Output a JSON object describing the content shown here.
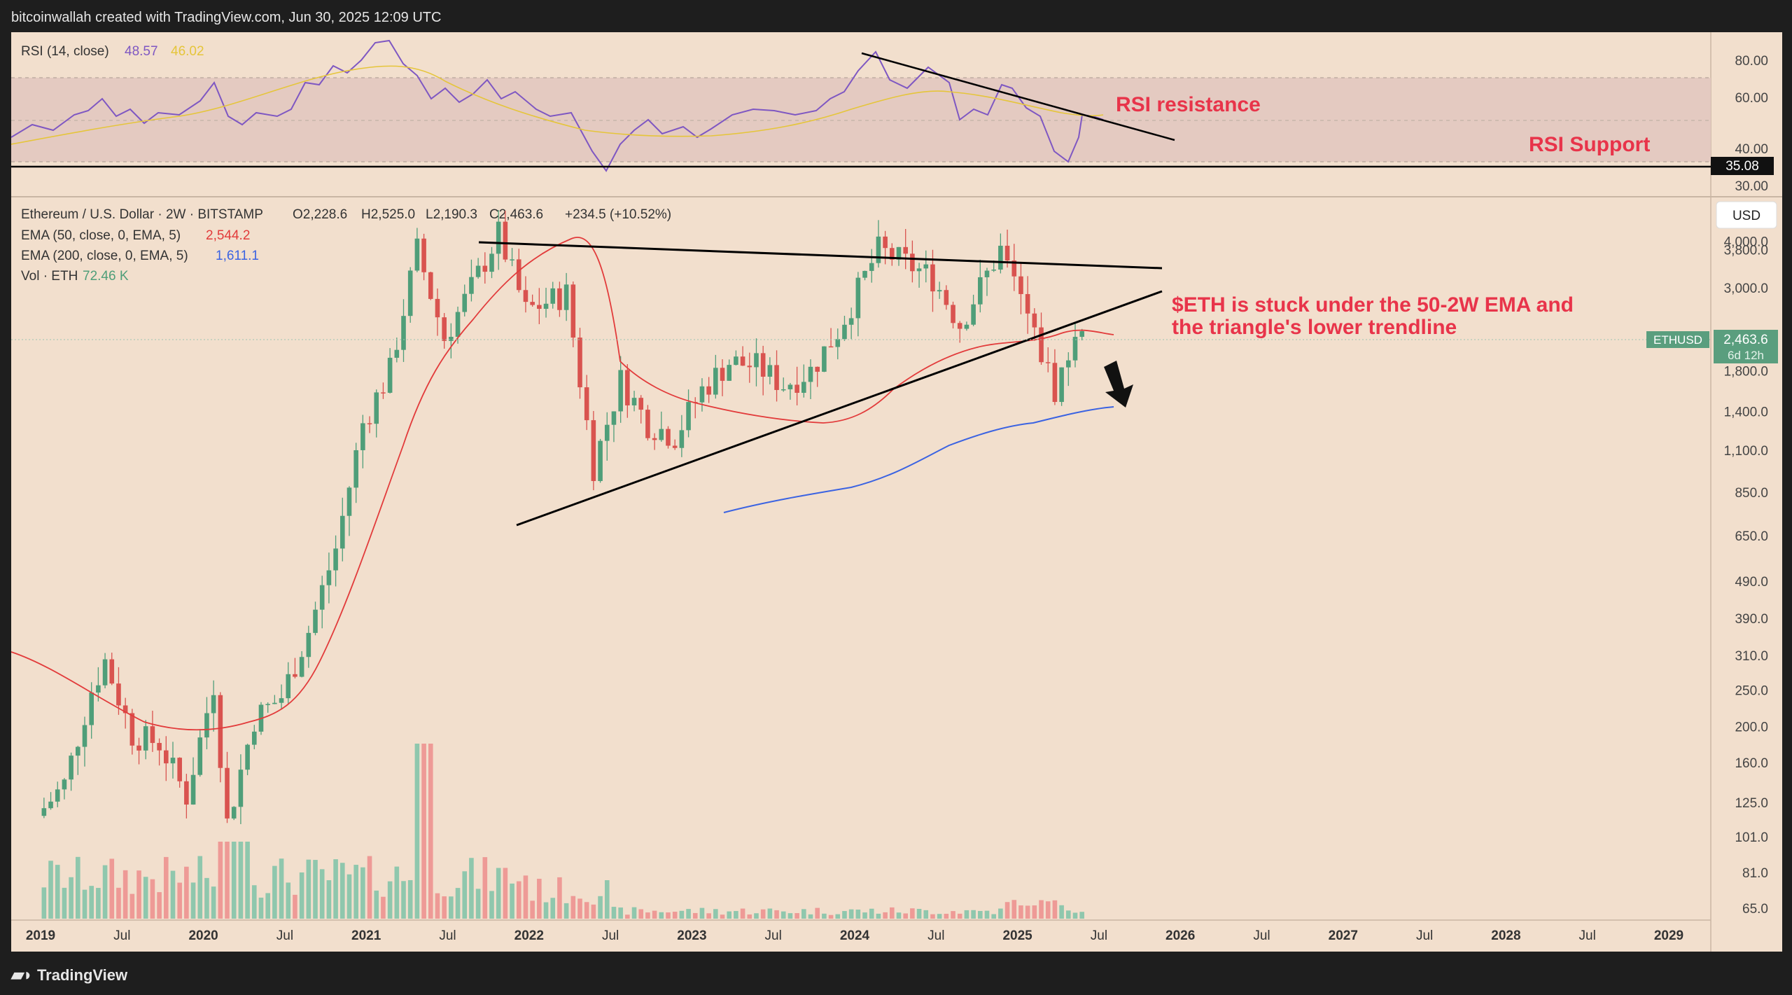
{
  "header": {
    "text": "bitcoinwallah created with TradingView.com, Jun 30, 2025 12:09 UTC"
  },
  "footer": {
    "brand": "TradingView",
    "logo_icon": "tradingview-logo-icon"
  },
  "colors": {
    "background": "#f2dfcd",
    "up": "#4f9e79",
    "down": "#d9534f",
    "ema50": "#e23b3b",
    "ema200": "#3b63e2",
    "rsi": "#7e57c2",
    "rsi_ma": "#e5c53a",
    "annotation": "#e8344a"
  },
  "rsi_panel": {
    "title": "RSI (14, close)",
    "rsi_value": "48.57",
    "ma_value": "46.02",
    "axis_labels": [
      "80.00",
      "60.00",
      "40.00",
      "30.00"
    ],
    "support_marker": "35.08",
    "annotation_resistance": "RSI resistance",
    "annotation_support": "RSI Support"
  },
  "main_panel": {
    "symbol_line": "Ethereum / U.S. Dollar · 2W · BITSTAMP",
    "ohlc": {
      "o": "O2,228.6",
      "h": "H2,525.0",
      "l": "L2,190.3",
      "c": "C2,463.6",
      "chg": "+234.5 (+10.52%)"
    },
    "ema50_label": "EMA (50, close, 0, EMA, 5)",
    "ema50_value": "2,544.2",
    "ema200_label": "EMA (200, close, 0, EMA, 5)",
    "ema200_value": "1,611.1",
    "vol_label": "Vol · ETH",
    "vol_value": "72.46 K",
    "currency_button": "USD",
    "price_tag": {
      "symbol": "ETHUSD",
      "price": "2,463.6",
      "countdown": "6d 12h"
    },
    "annotation": [
      "$ETH is stuck under the 50-2W EMA and",
      "the triangle's lower trendline"
    ],
    "price_axis": [
      "4,000.0",
      "3,800.0",
      "3,000.0",
      "1,800.0",
      "1,400.0",
      "1,100.0",
      "850.0",
      "650.0",
      "490.0",
      "390.0",
      "310.0",
      "250.0",
      "200.0",
      "160.0",
      "125.0",
      "101.0",
      "81.0",
      "65.0"
    ],
    "time_axis": [
      "2019",
      "Jul",
      "2020",
      "Jul",
      "2021",
      "Jul",
      "2022",
      "Jul",
      "2023",
      "Jul",
      "2024",
      "Jul",
      "2025",
      "Jul",
      "2026",
      "Jul",
      "2027",
      "Jul",
      "2028",
      "Jul",
      "2029"
    ]
  },
  "chart_data": {
    "type": "candlestick",
    "title": "Ethereum / U.S. Dollar · 2W · BITSTAMP",
    "y_scale": "log",
    "ylim": [
      62,
      4300
    ],
    "x_range": [
      "2019-01",
      "2029-03"
    ],
    "grid": false,
    "candles_close": [
      {
        "t": "2019-01",
        "c": 115
      },
      {
        "t": "2019-03",
        "c": 140
      },
      {
        "t": "2019-05",
        "c": 250
      },
      {
        "t": "2019-06",
        "c": 300
      },
      {
        "t": "2019-08",
        "c": 190
      },
      {
        "t": "2019-10",
        "c": 180
      },
      {
        "t": "2019-12",
        "c": 130
      },
      {
        "t": "2020-02",
        "c": 260
      },
      {
        "t": "2020-03",
        "c": 110
      },
      {
        "t": "2020-05",
        "c": 210
      },
      {
        "t": "2020-07",
        "c": 240
      },
      {
        "t": "2020-09",
        "c": 360
      },
      {
        "t": "2020-11",
        "c": 600
      },
      {
        "t": "2021-01",
        "c": 1300
      },
      {
        "t": "2021-03",
        "c": 1800
      },
      {
        "t": "2021-05",
        "c": 3800
      },
      {
        "t": "2021-07",
        "c": 2200
      },
      {
        "t": "2021-09",
        "c": 3000
      },
      {
        "t": "2021-11",
        "c": 4200
      },
      {
        "t": "2022-01",
        "c": 2600
      },
      {
        "t": "2022-04",
        "c": 2900
      },
      {
        "t": "2022-06",
        "c": 1000
      },
      {
        "t": "2022-08",
        "c": 1700
      },
      {
        "t": "2022-10",
        "c": 1300
      },
      {
        "t": "2022-12",
        "c": 1200
      },
      {
        "t": "2023-02",
        "c": 1600
      },
      {
        "t": "2023-04",
        "c": 1900
      },
      {
        "t": "2023-06",
        "c": 1850
      },
      {
        "t": "2023-08",
        "c": 1650
      },
      {
        "t": "2023-10",
        "c": 1800
      },
      {
        "t": "2023-12",
        "c": 2300
      },
      {
        "t": "2024-03",
        "c": 3800
      },
      {
        "t": "2024-05",
        "c": 3500
      },
      {
        "t": "2024-07",
        "c": 3200
      },
      {
        "t": "2024-09",
        "c": 2400
      },
      {
        "t": "2024-12",
        "c": 3800
      },
      {
        "t": "2025-02",
        "c": 2500
      },
      {
        "t": "2025-04",
        "c": 1600
      },
      {
        "t": "2025-06",
        "c": 2463.6
      }
    ],
    "series": [
      {
        "name": "EMA (50, close, 0, EMA, 5)",
        "last": 2544.2
      },
      {
        "name": "EMA (200, close, 0, EMA, 5)",
        "last": 1611.1
      },
      {
        "name": "Vol · ETH",
        "last": "72.46 K"
      }
    ],
    "rsi": {
      "name": "RSI (14, close)",
      "last": 48.57,
      "ma_last": 46.02,
      "ylim": [
        25,
        88
      ],
      "support": 35.08
    }
  }
}
